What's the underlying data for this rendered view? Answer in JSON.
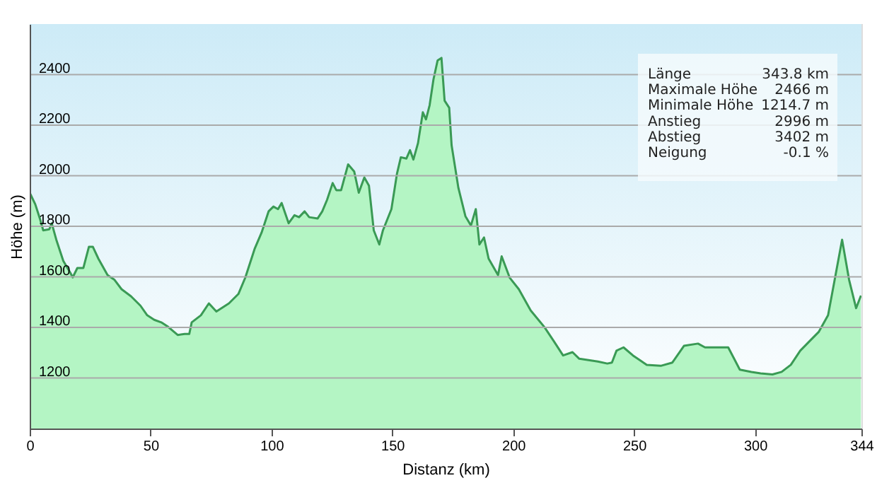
{
  "chart_data": {
    "type": "area",
    "xlabel": "Distanz  (km)",
    "ylabel": "Höhe (m)",
    "x": [
      0,
      2.3,
      4.2,
      5.6,
      8.1,
      9.1,
      11,
      13.9,
      16.8,
      17.8,
      19.7,
      22.2,
      24.5,
      26.1,
      28.4,
      32.2,
      35.1,
      38,
      41.9,
      45.8,
      48.6,
      51.5,
      54.4,
      57.3,
      61.2,
      64.1,
      66,
      67,
      70.8,
      74.1,
      77.2,
      82.4,
      86.3,
      89.2,
      93,
      95.9,
      98.8,
      100.8,
      102.7,
      104.2,
      107.1,
      109.5,
      111.4,
      113.7,
      115.6,
      119.1,
      121,
      123,
      125.3,
      126.8,
      128.8,
      131.7,
      134.2,
      136.1,
      138.4,
      140.3,
      142.3,
      144.6,
      146.1,
      149.6,
      151.9,
      153.5,
      155.8,
      157.3,
      158.7,
      160.6,
      162.6,
      163.9,
      165.4,
      167,
      168.7,
      170.3,
      171.6,
      173.5,
      174.5,
      177.3,
      180.2,
      182.5,
      184.5,
      186,
      187.9,
      189.8,
      193.7,
      195.2,
      198.5,
      202.3,
      207.2,
      212.9,
      216.8,
      220.6,
      224.5,
      227.3,
      235,
      238.9,
      240.8,
      242.7,
      245.6,
      249.5,
      255.2,
      261,
      265.8,
      270.6,
      276.4,
      279.3,
      284.1,
      288.9,
      293.7,
      298.5,
      302.3,
      307.2,
      311,
      314.8,
      318.7,
      322.5,
      326.4,
      330.2,
      333.1,
      336,
      338.9,
      341.8,
      343.8
    ],
    "series": [
      {
        "color": "#3a9a55",
        "values": [
          1933,
          1887,
          1831,
          1784,
          1788,
          1812,
          1747,
          1663,
          1616,
          1598,
          1635,
          1635,
          1719,
          1719,
          1672,
          1607,
          1588,
          1551,
          1523,
          1486,
          1448,
          1430,
          1420,
          1402,
          1370,
          1374,
          1374,
          1420,
          1448,
          1495,
          1463,
          1495,
          1532,
          1598,
          1710,
          1775,
          1859,
          1878,
          1868,
          1892,
          1812,
          1844,
          1836,
          1859,
          1836,
          1831,
          1859,
          1905,
          1971,
          1943,
          1943,
          2045,
          2017,
          1933,
          1993,
          1961,
          1784,
          1728,
          1784,
          1868,
          2008,
          2073,
          2068,
          2101,
          2064,
          2129,
          2251,
          2223,
          2279,
          2381,
          2456,
          2466,
          2297,
          2269,
          2120,
          1952,
          1840,
          1803,
          1868,
          1728,
          1756,
          1672,
          1607,
          1681,
          1597,
          1551,
          1467,
          1401,
          1345,
          1289,
          1302,
          1276,
          1265,
          1257,
          1261,
          1308,
          1321,
          1289,
          1252,
          1248,
          1261,
          1327,
          1336,
          1321,
          1321,
          1321,
          1233,
          1224,
          1218,
          1214,
          1224,
          1252,
          1308,
          1345,
          1383,
          1448,
          1597,
          1747,
          1588,
          1476,
          1526
        ]
      }
    ],
    "xlim": [
      0,
      344
    ],
    "xticks": [
      0,
      50,
      100,
      150,
      200,
      250,
      300,
      344
    ],
    "ylim": [
      1000,
      2600
    ],
    "yticks": [
      1200,
      1400,
      1600,
      1800,
      2000,
      2200,
      2400
    ],
    "grid": "y",
    "annotations": [
      "Länge",
      "343.8 km",
      "Maximale Höhe",
      "2466 m",
      "Minimale Höhe",
      "1214.7 m",
      "Anstieg",
      "2996 m",
      "Abstieg",
      "3402 m",
      "Neigung",
      "-0.1 %"
    ]
  }
}
